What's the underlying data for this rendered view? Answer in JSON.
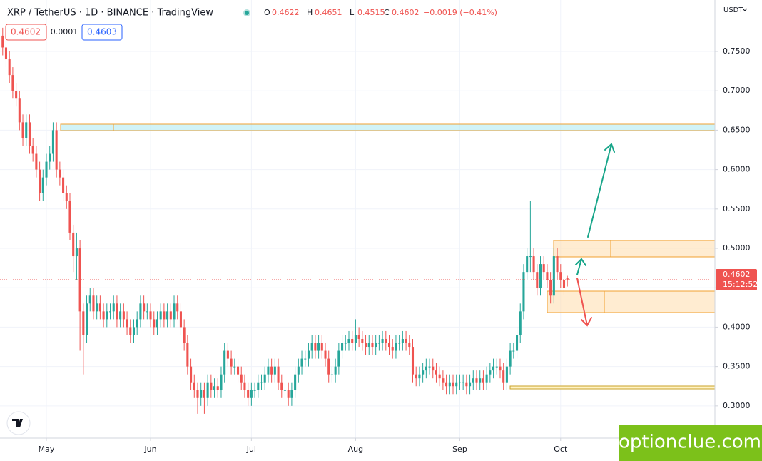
{
  "chart_data": {
    "type": "candlestick",
    "title": "XRP / TetherUS · 1D · BINANCE · TradingView",
    "ohlc_legend": [
      {
        "label": "O",
        "value": 0.4622
      },
      {
        "label": "H",
        "value": 0.4651
      },
      {
        "label": "L",
        "value": 0.4515
      },
      {
        "label": "C",
        "value": 0.4602
      }
    ],
    "change": "−0.0019 (−0.41%)",
    "sell_price": "0.4602",
    "spread": "0.0001",
    "buy_price": "0.4603",
    "currency": "USDT",
    "countdown": "15:12:52",
    "watermark": "optionclue.com",
    "up_color": "#26a69a",
    "down_color": "#ef5350",
    "open": [
      0.77,
      0.755,
      0.74,
      0.72,
      0.7,
      0.69,
      0.66,
      0.64,
      0.66,
      0.63,
      0.62,
      0.6,
      0.57,
      0.59,
      0.61,
      0.62,
      0.65,
      0.6,
      0.59,
      0.57,
      0.56,
      0.52,
      0.49,
      0.5,
      0.42,
      0.39,
      0.43,
      0.44,
      0.42,
      0.43,
      0.42,
      0.41,
      0.42,
      0.42,
      0.43,
      0.41,
      0.42,
      0.41,
      0.4,
      0.39,
      0.4,
      0.41,
      0.43,
      0.42,
      0.42,
      0.41,
      0.4,
      0.41,
      0.42,
      0.41,
      0.42,
      0.41,
      0.43,
      0.42,
      0.4,
      0.38,
      0.35,
      0.33,
      0.32,
      0.31,
      0.32,
      0.31,
      0.33,
      0.32,
      0.325,
      0.32,
      0.34,
      0.37,
      0.36,
      0.35,
      0.35,
      0.34,
      0.33,
      0.32,
      0.31,
      0.32,
      0.32,
      0.33,
      0.33,
      0.34,
      0.35,
      0.34,
      0.35,
      0.33,
      0.32,
      0.32,
      0.31,
      0.32,
      0.34,
      0.35,
      0.36,
      0.36,
      0.37,
      0.38,
      0.37,
      0.38,
      0.37,
      0.36,
      0.34,
      0.34,
      0.35,
      0.37,
      0.38,
      0.38,
      0.385,
      0.38,
      0.39,
      0.385,
      0.38,
      0.375,
      0.38,
      0.375,
      0.38,
      0.38,
      0.385,
      0.38,
      0.375,
      0.37,
      0.38,
      0.38,
      0.385,
      0.38,
      0.375,
      0.34,
      0.335,
      0.34,
      0.345,
      0.35,
      0.35,
      0.345,
      0.34,
      0.335,
      0.33,
      0.325,
      0.33,
      0.325,
      0.33,
      0.33,
      0.33,
      0.325,
      0.33,
      0.335,
      0.33,
      0.335,
      0.33,
      0.34,
      0.345,
      0.35,
      0.35,
      0.345,
      0.33,
      0.35,
      0.37,
      0.37,
      0.39,
      0.42,
      0.47,
      0.49,
      0.49,
      0.47,
      0.45,
      0.48,
      0.47,
      0.46,
      0.44,
      0.49,
      0.47,
      0.46,
      0.4622
    ],
    "high": [
      0.78,
      0.765,
      0.75,
      0.73,
      0.71,
      0.7,
      0.67,
      0.67,
      0.67,
      0.64,
      0.63,
      0.61,
      0.6,
      0.62,
      0.63,
      0.66,
      0.66,
      0.61,
      0.6,
      0.58,
      0.57,
      0.53,
      0.52,
      0.51,
      0.43,
      0.44,
      0.45,
      0.45,
      0.44,
      0.44,
      0.43,
      0.43,
      0.43,
      0.44,
      0.44,
      0.43,
      0.43,
      0.42,
      0.41,
      0.41,
      0.42,
      0.44,
      0.44,
      0.43,
      0.43,
      0.42,
      0.42,
      0.43,
      0.43,
      0.43,
      0.43,
      0.44,
      0.44,
      0.43,
      0.41,
      0.39,
      0.36,
      0.34,
      0.33,
      0.33,
      0.33,
      0.34,
      0.34,
      0.335,
      0.335,
      0.35,
      0.38,
      0.38,
      0.37,
      0.36,
      0.36,
      0.35,
      0.34,
      0.33,
      0.33,
      0.33,
      0.34,
      0.34,
      0.35,
      0.36,
      0.36,
      0.36,
      0.36,
      0.34,
      0.33,
      0.33,
      0.33,
      0.35,
      0.36,
      0.37,
      0.37,
      0.38,
      0.39,
      0.39,
      0.39,
      0.39,
      0.38,
      0.37,
      0.35,
      0.36,
      0.38,
      0.39,
      0.39,
      0.395,
      0.395,
      0.41,
      0.4,
      0.395,
      0.39,
      0.39,
      0.39,
      0.39,
      0.39,
      0.395,
      0.395,
      0.39,
      0.385,
      0.39,
      0.39,
      0.395,
      0.395,
      0.39,
      0.385,
      0.35,
      0.35,
      0.355,
      0.36,
      0.36,
      0.36,
      0.355,
      0.35,
      0.345,
      0.34,
      0.34,
      0.34,
      0.34,
      0.34,
      0.34,
      0.34,
      0.34,
      0.345,
      0.345,
      0.345,
      0.345,
      0.35,
      0.355,
      0.36,
      0.36,
      0.36,
      0.355,
      0.36,
      0.38,
      0.38,
      0.4,
      0.43,
      0.48,
      0.5,
      0.56,
      0.5,
      0.48,
      0.49,
      0.49,
      0.48,
      0.47,
      0.5,
      0.5,
      0.48,
      0.47,
      0.4651
    ],
    "low": [
      0.745,
      0.73,
      0.71,
      0.69,
      0.68,
      0.65,
      0.63,
      0.63,
      0.62,
      0.61,
      0.59,
      0.56,
      0.56,
      0.58,
      0.6,
      0.61,
      0.59,
      0.58,
      0.56,
      0.55,
      0.51,
      0.47,
      0.46,
      0.37,
      0.34,
      0.38,
      0.42,
      0.41,
      0.41,
      0.41,
      0.4,
      0.4,
      0.41,
      0.41,
      0.4,
      0.4,
      0.4,
      0.39,
      0.38,
      0.38,
      0.39,
      0.4,
      0.41,
      0.41,
      0.4,
      0.39,
      0.39,
      0.4,
      0.4,
      0.4,
      0.4,
      0.4,
      0.41,
      0.39,
      0.37,
      0.34,
      0.32,
      0.31,
      0.29,
      0.3,
      0.29,
      0.3,
      0.31,
      0.31,
      0.31,
      0.31,
      0.33,
      0.35,
      0.34,
      0.34,
      0.33,
      0.32,
      0.31,
      0.3,
      0.3,
      0.31,
      0.31,
      0.32,
      0.32,
      0.33,
      0.33,
      0.33,
      0.32,
      0.31,
      0.31,
      0.3,
      0.3,
      0.31,
      0.33,
      0.34,
      0.35,
      0.35,
      0.36,
      0.36,
      0.36,
      0.36,
      0.35,
      0.33,
      0.33,
      0.33,
      0.34,
      0.36,
      0.37,
      0.37,
      0.37,
      0.37,
      0.375,
      0.37,
      0.365,
      0.365,
      0.365,
      0.365,
      0.37,
      0.37,
      0.37,
      0.365,
      0.36,
      0.36,
      0.37,
      0.37,
      0.37,
      0.365,
      0.33,
      0.325,
      0.325,
      0.33,
      0.335,
      0.34,
      0.335,
      0.33,
      0.325,
      0.32,
      0.315,
      0.315,
      0.315,
      0.315,
      0.32,
      0.32,
      0.315,
      0.315,
      0.32,
      0.32,
      0.32,
      0.32,
      0.32,
      0.33,
      0.335,
      0.34,
      0.335,
      0.32,
      0.32,
      0.34,
      0.36,
      0.36,
      0.38,
      0.41,
      0.46,
      0.47,
      0.46,
      0.44,
      0.44,
      0.46,
      0.45,
      0.43,
      0.43,
      0.46,
      0.45,
      0.44,
      0.4515
    ],
    "close": [
      0.755,
      0.74,
      0.72,
      0.7,
      0.69,
      0.66,
      0.64,
      0.66,
      0.63,
      0.62,
      0.6,
      0.57,
      0.59,
      0.61,
      0.62,
      0.65,
      0.6,
      0.59,
      0.57,
      0.56,
      0.52,
      0.49,
      0.5,
      0.42,
      0.39,
      0.43,
      0.44,
      0.42,
      0.43,
      0.42,
      0.41,
      0.42,
      0.42,
      0.43,
      0.41,
      0.42,
      0.41,
      0.4,
      0.39,
      0.4,
      0.41,
      0.43,
      0.42,
      0.42,
      0.41,
      0.4,
      0.41,
      0.42,
      0.41,
      0.42,
      0.41,
      0.43,
      0.42,
      0.4,
      0.38,
      0.35,
      0.33,
      0.32,
      0.31,
      0.32,
      0.31,
      0.33,
      0.32,
      0.325,
      0.32,
      0.34,
      0.37,
      0.36,
      0.35,
      0.35,
      0.34,
      0.33,
      0.32,
      0.31,
      0.32,
      0.32,
      0.33,
      0.33,
      0.34,
      0.35,
      0.34,
      0.35,
      0.33,
      0.32,
      0.32,
      0.31,
      0.32,
      0.34,
      0.35,
      0.36,
      0.36,
      0.37,
      0.38,
      0.37,
      0.38,
      0.37,
      0.36,
      0.34,
      0.34,
      0.35,
      0.37,
      0.38,
      0.38,
      0.385,
      0.38,
      0.39,
      0.385,
      0.38,
      0.375,
      0.38,
      0.375,
      0.38,
      0.38,
      0.385,
      0.38,
      0.375,
      0.37,
      0.38,
      0.38,
      0.385,
      0.38,
      0.375,
      0.34,
      0.335,
      0.34,
      0.345,
      0.35,
      0.35,
      0.345,
      0.34,
      0.335,
      0.33,
      0.325,
      0.33,
      0.325,
      0.33,
      0.33,
      0.33,
      0.325,
      0.33,
      0.335,
      0.33,
      0.335,
      0.33,
      0.34,
      0.345,
      0.35,
      0.35,
      0.345,
      0.33,
      0.35,
      0.37,
      0.37,
      0.39,
      0.42,
      0.47,
      0.49,
      0.49,
      0.47,
      0.45,
      0.48,
      0.47,
      0.46,
      0.44,
      0.49,
      0.47,
      0.46,
      0.45,
      0.4602
    ],
    "xlim": [
      -0.8,
      211.9
    ],
    "xticks": [
      {
        "value": 13,
        "label": "May"
      },
      {
        "value": 44,
        "label": "Jun"
      },
      {
        "value": 74,
        "label": "Jul"
      },
      {
        "value": 105,
        "label": "Aug"
      },
      {
        "value": 136,
        "label": "Sep"
      },
      {
        "value": 166,
        "label": "Oct"
      }
    ],
    "ylim": [
      0.2591,
      0.8152
    ],
    "yticks": [
      {
        "value": 0.3,
        "label": "0.3000"
      },
      {
        "value": 0.35,
        "label": "0.3500"
      },
      {
        "value": 0.4,
        "label": "0.4000"
      },
      {
        "value": 0.45,
        "label": "0.4500"
      },
      {
        "value": 0.5,
        "label": "0.5000"
      },
      {
        "value": 0.55,
        "label": "0.5500"
      },
      {
        "value": 0.6,
        "label": "0.6000"
      },
      {
        "value": 0.65,
        "label": "0.6500"
      },
      {
        "value": 0.7,
        "label": "0.7000"
      },
      {
        "value": 0.75,
        "label": "0.7500"
      }
    ],
    "grid": true
  }
}
